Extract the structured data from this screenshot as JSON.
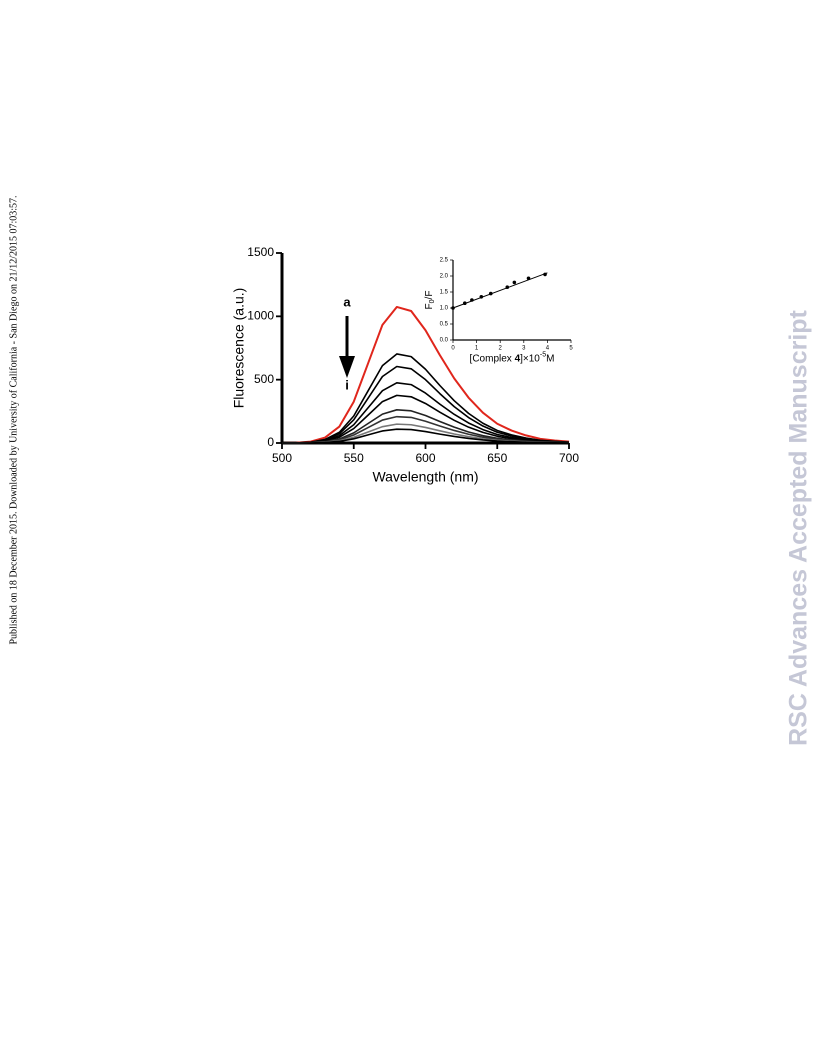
{
  "side_text": "Published on 18 December 2015. Downloaded by University of California - San Diego on 21/12/2015 07:03:57.",
  "watermark": "RSC Advances Accepted Manuscript",
  "chart_data": [
    {
      "type": "line",
      "xlabel": "Wavelength (nm)",
      "ylabel": "Fluorescence (a.u.)",
      "annotations": [
        "a",
        "i"
      ],
      "xlim": [
        500,
        700
      ],
      "xticks": [
        500,
        550,
        600,
        650,
        700
      ],
      "ylim": [
        0,
        1500
      ],
      "yticks": [
        0,
        500,
        1000,
        1500
      ],
      "x": [
        500,
        510,
        520,
        530,
        540,
        550,
        560,
        570,
        580,
        590,
        600,
        610,
        620,
        630,
        640,
        650,
        660,
        670,
        680,
        690,
        700
      ],
      "series": [
        {
          "color": "#e0261c",
          "values": [
            0,
            2,
            11,
            43,
            130,
            326,
            629,
            933,
            1074,
            1042,
            890,
            694,
            510,
            358,
            239,
            152,
            98,
            60,
            33,
            20,
            11
          ]
        },
        {
          "color": "#000000",
          "values": [
            0,
            1,
            7,
            28,
            85,
            213,
            412,
            611,
            703,
            682,
            582,
            454,
            334,
            234,
            156,
            99,
            64,
            39,
            21,
            13,
            7
          ]
        },
        {
          "color": "#000000",
          "values": [
            0,
            1,
            6,
            24,
            73,
            183,
            354,
            525,
            604,
            586,
            500,
            390,
            287,
            201,
            134,
            85,
            55,
            34,
            18,
            11,
            6
          ]
        },
        {
          "color": "#000000",
          "values": [
            0,
            1,
            5,
            19,
            58,
            144,
            278,
            413,
            475,
            461,
            394,
            307,
            226,
            158,
            106,
            67,
            43,
            26,
            14,
            9,
            5
          ]
        },
        {
          "color": "#000000",
          "values": [
            0,
            1,
            4,
            15,
            46,
            114,
            220,
            327,
            376,
            365,
            312,
            243,
            179,
            125,
            84,
            53,
            34,
            21,
            11,
            7,
            4
          ]
        },
        {
          "color": "#222222",
          "values": [
            0,
            1,
            3,
            11,
            32,
            80,
            154,
            228,
            262,
            254,
            217,
            170,
            125,
            87,
            58,
            37,
            24,
            15,
            8,
            5,
            3
          ]
        },
        {
          "color": "#333333",
          "values": [
            0,
            0,
            2,
            8,
            25,
            63,
            122,
            181,
            208,
            202,
            172,
            134,
            99,
            69,
            46,
            29,
            19,
            12,
            6,
            4,
            2
          ]
        },
        {
          "color": "#777777",
          "values": [
            0,
            0,
            2,
            6,
            18,
            45,
            87,
            129,
            149,
            144,
            123,
            96,
            71,
            50,
            33,
            21,
            14,
            8,
            5,
            3,
            2
          ]
        },
        {
          "color": "#000000",
          "values": [
            0,
            0,
            1,
            4,
            13,
            33,
            64,
            95,
            109,
            106,
            90,
            70,
            52,
            36,
            24,
            15,
            10,
            6,
            3,
            2,
            1
          ]
        }
      ]
    },
    {
      "type": "scatter",
      "xlabel": {
        "pre": "[Complex ",
        "bold": "4",
        "mid": "]×10",
        "sup": "-5",
        "post": "M"
      },
      "ylabel": {
        "main": "F",
        "sub": "0",
        "post": "/F"
      },
      "xlim": [
        0,
        5
      ],
      "xticks": [
        0,
        1,
        2,
        3,
        4,
        5
      ],
      "ylim": [
        0,
        2.5
      ],
      "yticks": [
        {
          "value": 0,
          "label": "0.0"
        },
        0.5,
        {
          "value": 1,
          "label": "1.0"
        },
        1.5,
        {
          "value": 2,
          "label": "2.0"
        },
        2.5
      ],
      "x": [
        0,
        0.5,
        0.8,
        1.2,
        1.6,
        2.3,
        2.6,
        3.2,
        3.9
      ],
      "y": [
        1.0,
        1.15,
        1.25,
        1.35,
        1.45,
        1.65,
        1.8,
        1.93,
        2.05
      ],
      "color": "#000000",
      "fit": {
        "x": [
          0,
          4
        ],
        "y": [
          1.0,
          2.1
        ]
      }
    }
  ]
}
